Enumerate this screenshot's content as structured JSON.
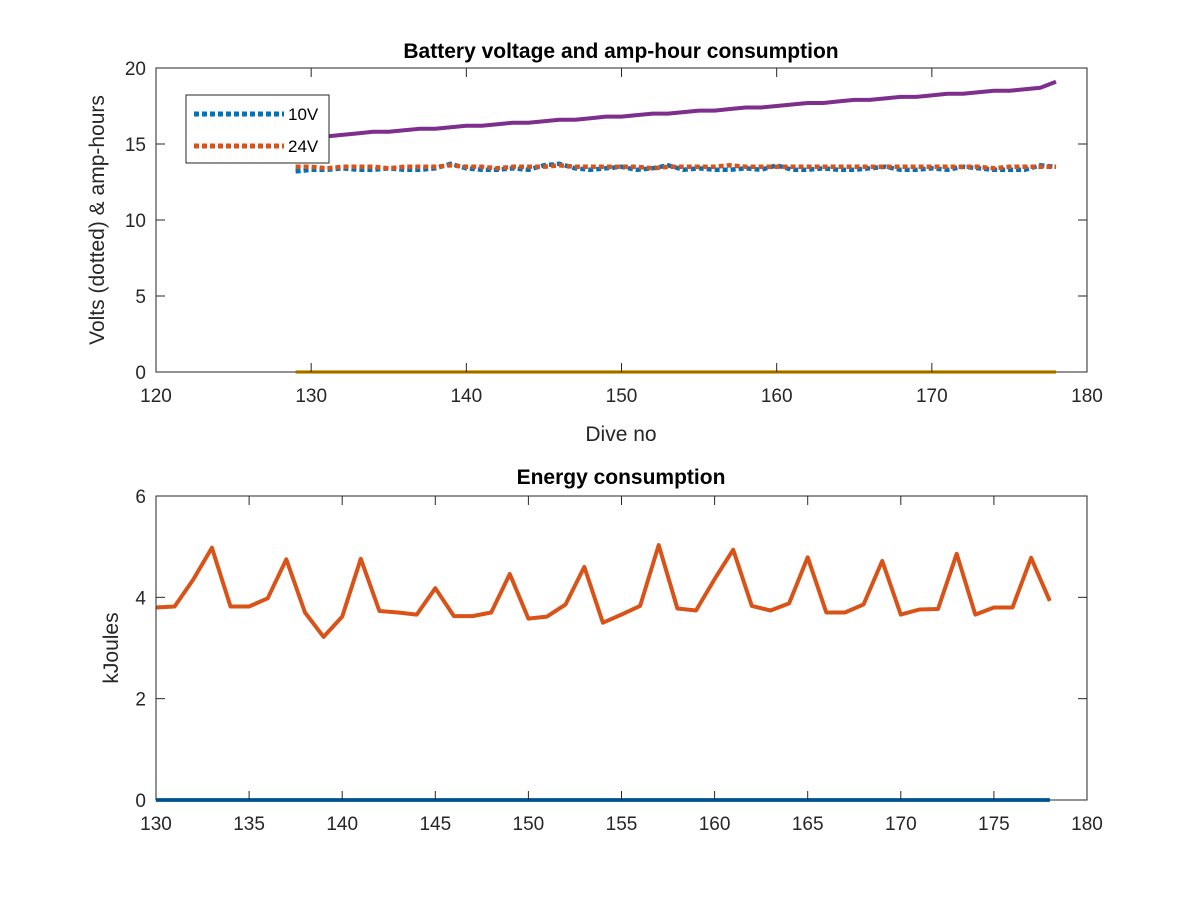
{
  "chart_data": [
    {
      "type": "line",
      "title": "Battery voltage and amp-hour consumption",
      "xlabel": "Dive no",
      "ylabel": "Volts (dotted) & amp-hours",
      "xlim": [
        120,
        180
      ],
      "ylim": [
        0,
        20
      ],
      "xticks": [
        120,
        130,
        140,
        150,
        160,
        170,
        180
      ],
      "yticks": [
        0,
        5,
        10,
        15,
        20
      ],
      "grid": false,
      "legend": "top-left",
      "x": [
        129,
        130,
        131,
        132,
        133,
        134,
        135,
        136,
        137,
        138,
        139,
        140,
        141,
        142,
        143,
        144,
        145,
        146,
        147,
        148,
        149,
        150,
        151,
        152,
        153,
        154,
        155,
        156,
        157,
        158,
        159,
        160,
        161,
        162,
        163,
        164,
        165,
        166,
        167,
        168,
        169,
        170,
        171,
        172,
        173,
        174,
        175,
        176,
        177,
        178
      ],
      "series": [
        {
          "name": "10V",
          "style": "dotted",
          "color": "#0072BD",
          "values": [
            13.2,
            13.3,
            13.3,
            13.4,
            13.3,
            13.3,
            13.4,
            13.3,
            13.3,
            13.4,
            13.7,
            13.4,
            13.3,
            13.3,
            13.4,
            13.3,
            13.6,
            13.7,
            13.4,
            13.3,
            13.4,
            13.5,
            13.3,
            13.4,
            13.6,
            13.3,
            13.4,
            13.3,
            13.3,
            13.4,
            13.3,
            13.6,
            13.3,
            13.3,
            13.4,
            13.3,
            13.3,
            13.4,
            13.5,
            13.3,
            13.3,
            13.4,
            13.3,
            13.5,
            13.4,
            13.3,
            13.3,
            13.3,
            13.6,
            13.5
          ]
        },
        {
          "name": "24V",
          "style": "dotted",
          "color": "#D95319",
          "values": [
            13.5,
            13.5,
            13.4,
            13.5,
            13.5,
            13.5,
            13.4,
            13.5,
            13.5,
            13.5,
            13.6,
            13.5,
            13.5,
            13.4,
            13.5,
            13.5,
            13.5,
            13.6,
            13.5,
            13.5,
            13.5,
            13.5,
            13.5,
            13.4,
            13.5,
            13.5,
            13.5,
            13.5,
            13.6,
            13.5,
            13.5,
            13.5,
            13.5,
            13.5,
            13.5,
            13.5,
            13.5,
            13.5,
            13.5,
            13.5,
            13.5,
            13.5,
            13.5,
            13.5,
            13.5,
            13.4,
            13.5,
            13.5,
            13.5,
            13.5
          ]
        },
        {
          "name": "",
          "style": "solid",
          "color": "#7E2F8E",
          "values": [
            15.4,
            15.5,
            15.5,
            15.6,
            15.7,
            15.8,
            15.8,
            15.9,
            16.0,
            16.0,
            16.1,
            16.2,
            16.2,
            16.3,
            16.4,
            16.4,
            16.5,
            16.6,
            16.6,
            16.7,
            16.8,
            16.8,
            16.9,
            17.0,
            17.0,
            17.1,
            17.2,
            17.2,
            17.3,
            17.4,
            17.4,
            17.5,
            17.6,
            17.7,
            17.7,
            17.8,
            17.9,
            17.9,
            18.0,
            18.1,
            18.1,
            18.2,
            18.3,
            18.3,
            18.4,
            18.5,
            18.5,
            18.6,
            18.7,
            19.1
          ]
        },
        {
          "name": "",
          "style": "solid",
          "color": "#EDB120",
          "values": [
            0,
            0,
            0,
            0,
            0,
            0,
            0,
            0,
            0,
            0,
            0,
            0,
            0,
            0,
            0,
            0,
            0,
            0,
            0,
            0,
            0,
            0,
            0,
            0,
            0,
            0,
            0,
            0,
            0,
            0,
            0,
            0,
            0,
            0,
            0,
            0,
            0,
            0,
            0,
            0,
            0,
            0,
            0,
            0,
            0,
            0,
            0,
            0,
            0,
            0
          ]
        }
      ]
    },
    {
      "type": "line",
      "title": "Energy consumption",
      "xlabel": "",
      "ylabel": "kJoules",
      "xlim": [
        130,
        180
      ],
      "ylim": [
        0,
        6
      ],
      "xticks": [
        130,
        135,
        140,
        145,
        150,
        155,
        160,
        165,
        170,
        175,
        180
      ],
      "yticks": [
        0,
        2,
        4,
        6
      ],
      "grid": false,
      "x": [
        130,
        131,
        132,
        133,
        134,
        135,
        136,
        137,
        138,
        139,
        140,
        141,
        142,
        143,
        144,
        145,
        146,
        147,
        148,
        149,
        150,
        151,
        152,
        153,
        154,
        155,
        156,
        157,
        158,
        159,
        160,
        161,
        162,
        163,
        164,
        165,
        166,
        167,
        168,
        169,
        170,
        171,
        172,
        173,
        174,
        175,
        176,
        177,
        178
      ],
      "series": [
        {
          "name": "",
          "style": "solid",
          "color": "#D95319",
          "values": [
            3.8,
            3.82,
            4.35,
            4.98,
            3.82,
            3.82,
            3.98,
            4.75,
            3.7,
            3.22,
            3.62,
            4.76,
            3.73,
            3.7,
            3.66,
            4.18,
            3.63,
            3.63,
            3.7,
            4.46,
            3.58,
            3.62,
            3.86,
            4.6,
            3.5,
            3.66,
            3.83,
            5.03,
            3.78,
            3.74,
            4.36,
            4.94,
            3.83,
            3.74,
            3.88,
            4.79,
            3.7,
            3.7,
            3.86,
            4.72,
            3.66,
            3.76,
            3.77,
            4.86,
            3.66,
            3.8,
            3.8,
            4.78,
            3.93
          ]
        },
        {
          "name": "",
          "style": "solid",
          "color": "#0072BD",
          "values": [
            0,
            0,
            0,
            0,
            0,
            0,
            0,
            0,
            0,
            0,
            0,
            0,
            0,
            0,
            0,
            0,
            0,
            0,
            0,
            0,
            0,
            0,
            0,
            0,
            0,
            0,
            0,
            0,
            0,
            0,
            0,
            0,
            0,
            0,
            0,
            0,
            0,
            0,
            0,
            0,
            0,
            0,
            0,
            0,
            0,
            0,
            0,
            0,
            0
          ]
        }
      ]
    }
  ]
}
